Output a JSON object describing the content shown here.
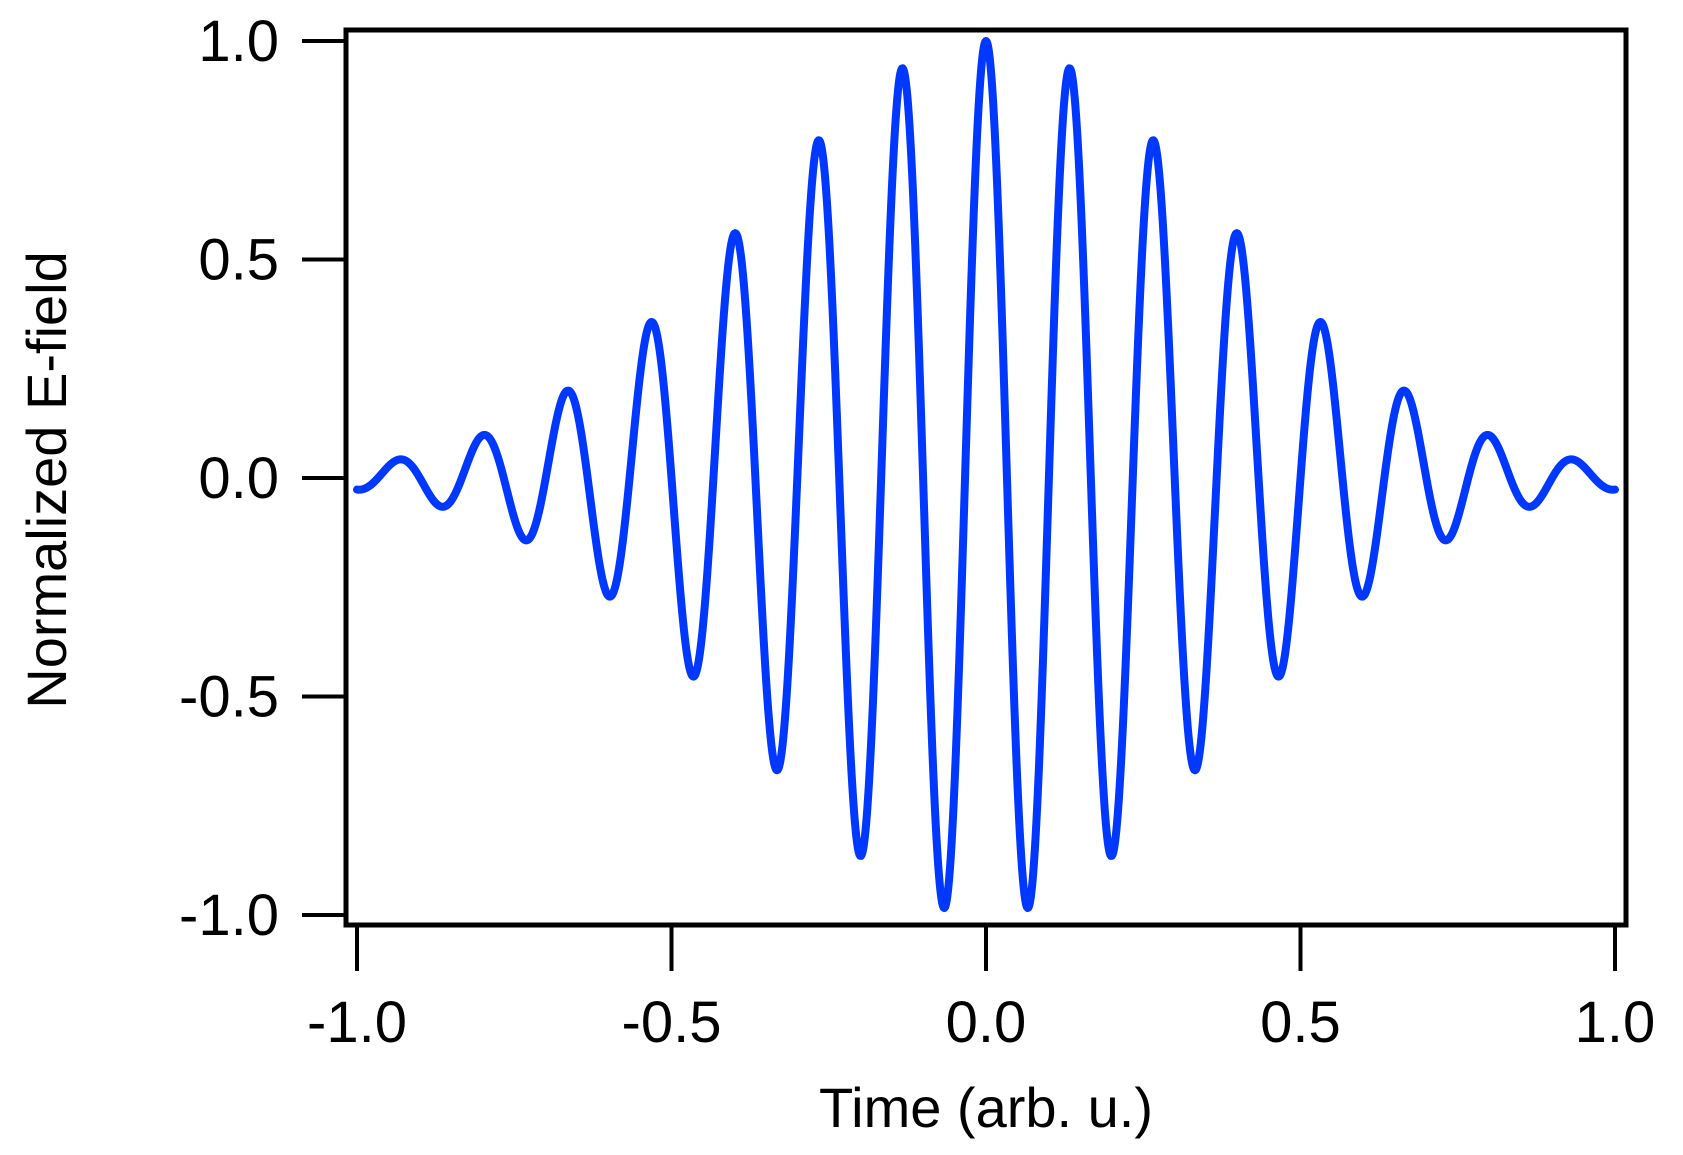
{
  "chart_data": {
    "type": "line",
    "title": "",
    "xlabel": "Time (arb. u.)",
    "ylabel": "Normalized E-field",
    "xlim": [
      -1.0,
      1.0
    ],
    "ylim": [
      -1.0,
      1.0
    ],
    "xticks": [
      -1.0,
      -0.5,
      0.0,
      0.5,
      1.0
    ],
    "xtick_labels": [
      "-1.0",
      "-0.5",
      "0.0",
      "0.5",
      "1.0"
    ],
    "yticks": [
      1.0,
      0.5,
      0.0,
      -0.5,
      -1.0
    ],
    "ytick_labels": [
      "1.0",
      "0.5",
      "0.0",
      "-0.5",
      "-1.0"
    ],
    "grid": false,
    "legend": null,
    "series": [
      {
        "name": "E-field",
        "color": "#0038FF",
        "function": "exp(-t^2/(2*sigma^2)) * cos(2*pi*f*t)",
        "params": {
          "sigma": 0.371,
          "f": 7.5
        },
        "peaks": [
          {
            "x": -0.933,
            "y": 0.045
          },
          {
            "x": -0.867,
            "y": -0.07
          },
          {
            "x": -0.8,
            "y": 0.1
          },
          {
            "x": -0.733,
            "y": -0.15
          },
          {
            "x": -0.667,
            "y": 0.2
          },
          {
            "x": -0.6,
            "y": -0.27
          },
          {
            "x": -0.533,
            "y": 0.36
          },
          {
            "x": -0.467,
            "y": -0.45
          },
          {
            "x": -0.4,
            "y": 0.56
          },
          {
            "x": -0.333,
            "y": -0.67
          },
          {
            "x": -0.267,
            "y": 0.77
          },
          {
            "x": -0.2,
            "y": -0.86
          },
          {
            "x": -0.133,
            "y": 0.93
          },
          {
            "x": -0.067,
            "y": -0.98
          },
          {
            "x": 0.0,
            "y": 1.0
          },
          {
            "x": 0.067,
            "y": -0.98
          },
          {
            "x": 0.133,
            "y": 0.93
          },
          {
            "x": 0.2,
            "y": -0.86
          },
          {
            "x": 0.267,
            "y": 0.77
          },
          {
            "x": 0.333,
            "y": -0.67
          },
          {
            "x": 0.4,
            "y": 0.56
          },
          {
            "x": 0.467,
            "y": -0.45
          },
          {
            "x": 0.533,
            "y": 0.36
          },
          {
            "x": 0.6,
            "y": -0.27
          },
          {
            "x": 0.667,
            "y": 0.2
          },
          {
            "x": 0.733,
            "y": -0.15
          },
          {
            "x": 0.8,
            "y": 0.1
          },
          {
            "x": 0.867,
            "y": -0.07
          },
          {
            "x": 0.933,
            "y": 0.045
          }
        ],
        "endpoints": [
          {
            "x": -1.0,
            "y": -0.027
          },
          {
            "x": 1.0,
            "y": -0.027
          }
        ]
      }
    ]
  }
}
